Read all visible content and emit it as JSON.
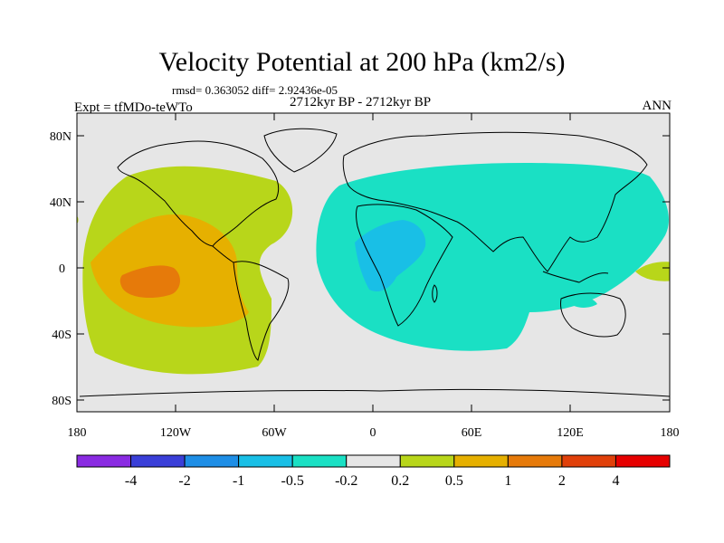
{
  "title": "Velocity Potential at 200 hPa (km2/s)",
  "stats_line": "rmsd= 0.363052 diff= 2.92436e-05",
  "period_line": "2712kyr BP - 2712kyr BP",
  "experiment_label": "Expt = tfMDo-teWTo",
  "season_label": "ANN",
  "map": {
    "lat_ticks": [
      "80N",
      "40N",
      "0",
      "40S",
      "80S"
    ],
    "lon_ticks": [
      "180",
      "120W",
      "60W",
      "0",
      "60E",
      "120E",
      "180"
    ]
  },
  "colorbar": {
    "labels": [
      "-4",
      "-2",
      "-1",
      "-0.5",
      "-0.2",
      "0.2",
      "0.5",
      "1",
      "2",
      "4"
    ],
    "colors": [
      "#8a2be2",
      "#3a3fd8",
      "#1e8ee6",
      "#19bfe6",
      "#1ae0c4",
      "#e6e6e6",
      "#b8d61a",
      "#e6b000",
      "#e67a0a",
      "#e0400a",
      "#e60000"
    ]
  },
  "colors": {
    "ocean_neutral": "#e6e6e6",
    "positive_weak": "#b8d61a",
    "positive_mid": "#e6b000",
    "positive_strong": "#e67a0a",
    "negative_weak": "#1ae0c4",
    "negative_mid": "#19bfe6"
  }
}
